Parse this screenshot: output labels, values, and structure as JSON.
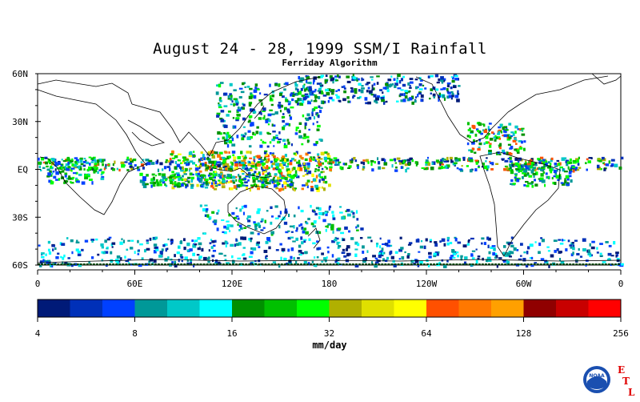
{
  "title": "August 24 - 28, 1999 SSM/I Rainfall",
  "subtitle": "Ferriday Algorithm",
  "map": {
    "lat_labels": [
      "60N",
      "30N",
      "EQ",
      "30S",
      "60S"
    ],
    "lat_values": [
      60,
      30,
      0,
      -30,
      -60
    ],
    "lon_labels": [
      "0",
      "60E",
      "120E",
      "180",
      "120W",
      "60W",
      "0"
    ],
    "lon_values": [
      0,
      60,
      120,
      180,
      240,
      300,
      360
    ],
    "lon_range": [
      0,
      360
    ],
    "lat_range": [
      -60,
      60
    ]
  },
  "colorbar": {
    "colors": [
      "#001a78",
      "#0030b8",
      "#0040ff",
      "#009898",
      "#00c8c8",
      "#00ffff",
      "#009000",
      "#00c000",
      "#00ff00",
      "#b0b000",
      "#e0e000",
      "#ffff00",
      "#ff5000",
      "#ff7800",
      "#ffa000",
      "#900000",
      "#c80000",
      "#ff0000"
    ],
    "tick_labels": [
      "4",
      "8",
      "16",
      "32",
      "64",
      "128",
      "256"
    ],
    "units": "mm/day"
  },
  "logo": {
    "name": "NOAA",
    "letters": [
      "E",
      "T",
      "L"
    ],
    "letter_color": "#e00000"
  }
}
